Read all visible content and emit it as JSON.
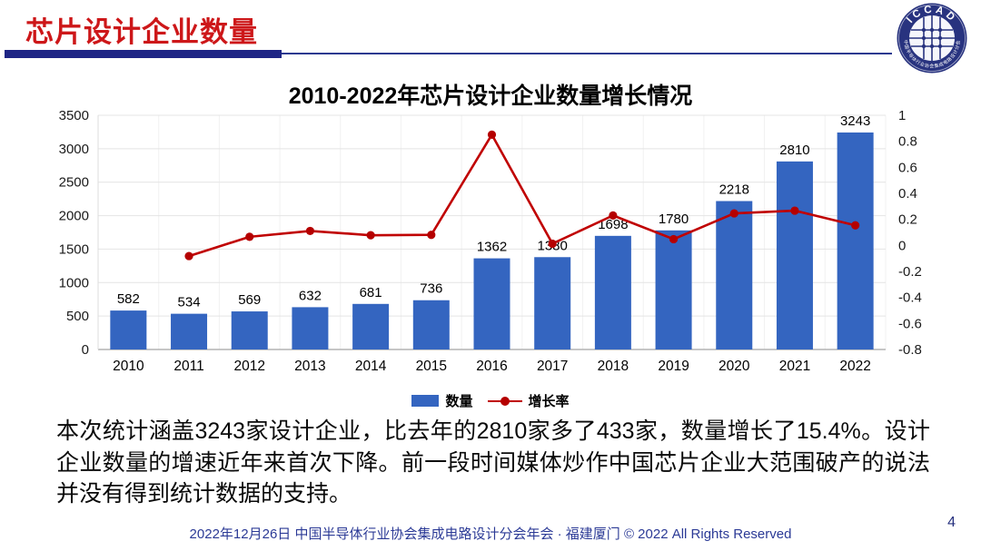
{
  "header": {
    "title": "芯片设计企业数量",
    "logo": {
      "name": "ICCAD",
      "ring_text": "中国半导体行业协会集成电路设计分会"
    }
  },
  "chart_data": {
    "type": "bar+line combo",
    "title": "2010-2022年芯片设计企业数量增长情况",
    "categories": [
      "2010",
      "2011",
      "2012",
      "2013",
      "2014",
      "2015",
      "2016",
      "2017",
      "2018",
      "2019",
      "2020",
      "2021",
      "2022"
    ],
    "series": [
      {
        "name": "数量",
        "type": "bar",
        "axis": "left",
        "color": "#3465c0",
        "values": [
          582,
          534,
          569,
          632,
          681,
          736,
          1362,
          1380,
          1698,
          1780,
          2218,
          2810,
          3243
        ]
      },
      {
        "name": "增长率",
        "type": "line",
        "axis": "right",
        "color": "#c00000",
        "values": [
          null,
          -0.082,
          0.066,
          0.111,
          0.078,
          0.081,
          0.851,
          0.013,
          0.23,
          0.048,
          0.246,
          0.267,
          0.154
        ]
      }
    ],
    "left_axis": {
      "min": 0,
      "max": 3500,
      "step": 500,
      "ticks": [
        0,
        500,
        1000,
        1500,
        2000,
        2500,
        3000,
        3500
      ]
    },
    "right_axis": {
      "min": -0.8,
      "max": 1,
      "step": 0.2,
      "ticks": [
        1,
        0.8,
        0.6,
        0.4,
        0.2,
        0,
        -0.2,
        -0.4,
        -0.6,
        -0.8
      ]
    },
    "grid": "horizontal + faint vertical category gridlines",
    "legend_position": "bottom-center",
    "data_labels_shown": true
  },
  "body": {
    "paragraph": "本次统计涵盖3243家设计企业，比去年的2810家多了433家，数量增长了15.4%。设计企业数量的增速近年来首次下降。前一段时间媒体炒作中国芯片企业大范围破产的说法并没有得到统计数据的支持。"
  },
  "footer": {
    "text": "2022年12月26日 中国半导体行业协会集成电路设计分会年会 · 福建厦门 © 2022 All Rights Reserved",
    "page_number": "4"
  },
  "colors": {
    "header_red": "#cd1719",
    "navy_bar": "#1e2585",
    "navy_text": "#2b3a96",
    "bar_blue": "#3465c0",
    "line_red": "#c00000",
    "gridline": "#e4e4e4"
  }
}
